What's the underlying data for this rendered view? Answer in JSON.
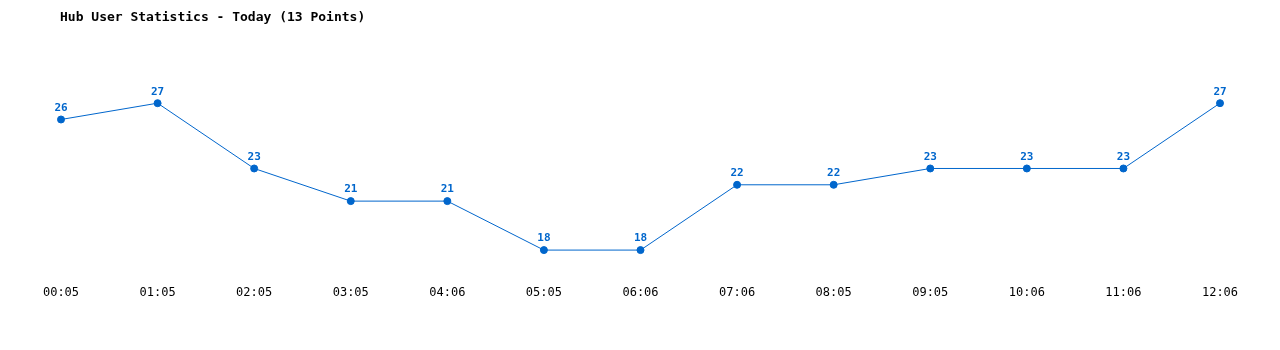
{
  "chart_data": {
    "type": "line",
    "title": "Hub User Statistics - Today (13 Points)",
    "categories": [
      "00:05",
      "01:05",
      "02:05",
      "03:05",
      "04:06",
      "05:05",
      "06:06",
      "07:06",
      "08:05",
      "09:05",
      "10:06",
      "11:06",
      "12:06"
    ],
    "series": [
      {
        "color": "#0066cc",
        "values": [
          26,
          27,
          23,
          21,
          21,
          18,
          18,
          22,
          22,
          23,
          23,
          23,
          27
        ]
      }
    ],
    "data_labels": true,
    "marker": "circle",
    "line_style": "solid",
    "grid": false,
    "legend": false,
    "tick_labels": "x"
  }
}
